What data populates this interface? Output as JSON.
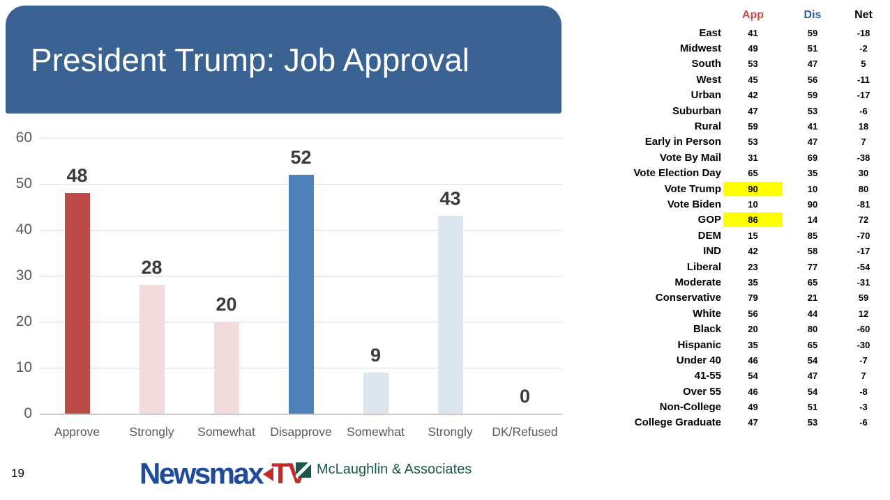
{
  "slide": {
    "title": "President Trump: Job Approval",
    "page_number": "19"
  },
  "colors": {
    "banner": "#3A6292",
    "approve": "#BE4B48",
    "approve_light": "#F2DCDB",
    "disapprove": "#4F81BD",
    "disapprove_light": "#DCE6F1",
    "highlight": "#FFFF00",
    "app_header": "#C0504D",
    "dis_header": "#2B5CA7",
    "net_header": "#000000",
    "grid": "#D9D9D9",
    "axis_text": "#595959",
    "value_text": "#3B3B3B"
  },
  "chart_data": {
    "type": "bar",
    "title": "",
    "xlabel": "",
    "ylabel": "",
    "categories": [
      "Approve",
      "Strongly",
      "Somewhat",
      "Disapprove",
      "Somewhat",
      "Strongly",
      "DK/Refused"
    ],
    "values": [
      48,
      28,
      20,
      52,
      9,
      43,
      0
    ],
    "bar_colors": [
      "#BE4B48",
      "#F2DCDB",
      "#F2DCDB",
      "#4F81BD",
      "#DCE6F1",
      "#DCE6F1",
      "#DCE6F1"
    ],
    "data_labels": [
      "48",
      "28",
      "20",
      "52",
      "9",
      "43",
      "0"
    ],
    "ylim": [
      0,
      60
    ],
    "yticks": [
      0,
      10,
      20,
      30,
      40,
      50,
      60
    ],
    "grid": true,
    "legend": false
  },
  "table": {
    "col_headers": [
      "App",
      "Dis",
      "Net"
    ],
    "rows": [
      {
        "label": "East",
        "app": "41",
        "dis": "59",
        "net": "-18",
        "highlight": false
      },
      {
        "label": "Midwest",
        "app": "49",
        "dis": "51",
        "net": "-2",
        "highlight": false
      },
      {
        "label": "South",
        "app": "53",
        "dis": "47",
        "net": "5",
        "highlight": false
      },
      {
        "label": "West",
        "app": "45",
        "dis": "56",
        "net": "-11",
        "highlight": false
      },
      {
        "label": "Urban",
        "app": "42",
        "dis": "59",
        "net": "-17",
        "highlight": false
      },
      {
        "label": "Suburban",
        "app": "47",
        "dis": "53",
        "net": "-6",
        "highlight": false
      },
      {
        "label": "Rural",
        "app": "59",
        "dis": "41",
        "net": "18",
        "highlight": false
      },
      {
        "label": "Early in Person",
        "app": "53",
        "dis": "47",
        "net": "7",
        "highlight": false
      },
      {
        "label": "Vote By Mail",
        "app": "31",
        "dis": "69",
        "net": "-38",
        "highlight": false
      },
      {
        "label": "Vote Election Day",
        "app": "65",
        "dis": "35",
        "net": "30",
        "highlight": false
      },
      {
        "label": "Vote Trump",
        "app": "90",
        "dis": "10",
        "net": "80",
        "highlight": true
      },
      {
        "label": "Vote Biden",
        "app": "10",
        "dis": "90",
        "net": "-81",
        "highlight": false
      },
      {
        "label": "GOP",
        "app": "86",
        "dis": "14",
        "net": "72",
        "highlight": true
      },
      {
        "label": "DEM",
        "app": "15",
        "dis": "85",
        "net": "-70",
        "highlight": false
      },
      {
        "label": "IND",
        "app": "42",
        "dis": "58",
        "net": "-17",
        "highlight": false
      },
      {
        "label": "Liberal",
        "app": "23",
        "dis": "77",
        "net": "-54",
        "highlight": false
      },
      {
        "label": "Moderate",
        "app": "35",
        "dis": "65",
        "net": "-31",
        "highlight": false
      },
      {
        "label": "Conservative",
        "app": "79",
        "dis": "21",
        "net": "59",
        "highlight": false
      },
      {
        "label": "White",
        "app": "56",
        "dis": "44",
        "net": "12",
        "highlight": false
      },
      {
        "label": "Black",
        "app": "20",
        "dis": "80",
        "net": "-60",
        "highlight": false
      },
      {
        "label": "Hispanic",
        "app": "35",
        "dis": "65",
        "net": "-30",
        "highlight": false
      },
      {
        "label": "Under 40",
        "app": "46",
        "dis": "54",
        "net": "-7",
        "highlight": false
      },
      {
        "label": "41-55",
        "app": "54",
        "dis": "47",
        "net": "7",
        "highlight": false
      },
      {
        "label": "Over 55",
        "app": "46",
        "dis": "54",
        "net": "-8",
        "highlight": false
      },
      {
        "label": "Non-College",
        "app": "49",
        "dis": "51",
        "net": "-3",
        "highlight": false
      },
      {
        "label": "College Graduate",
        "app": "47",
        "dis": "53",
        "net": "-6",
        "highlight": false
      }
    ]
  },
  "footer": {
    "newsmax_word": "Newsmax",
    "newsmax_tv": "TV",
    "mclaughlin": "McLaughlin & Associates"
  }
}
